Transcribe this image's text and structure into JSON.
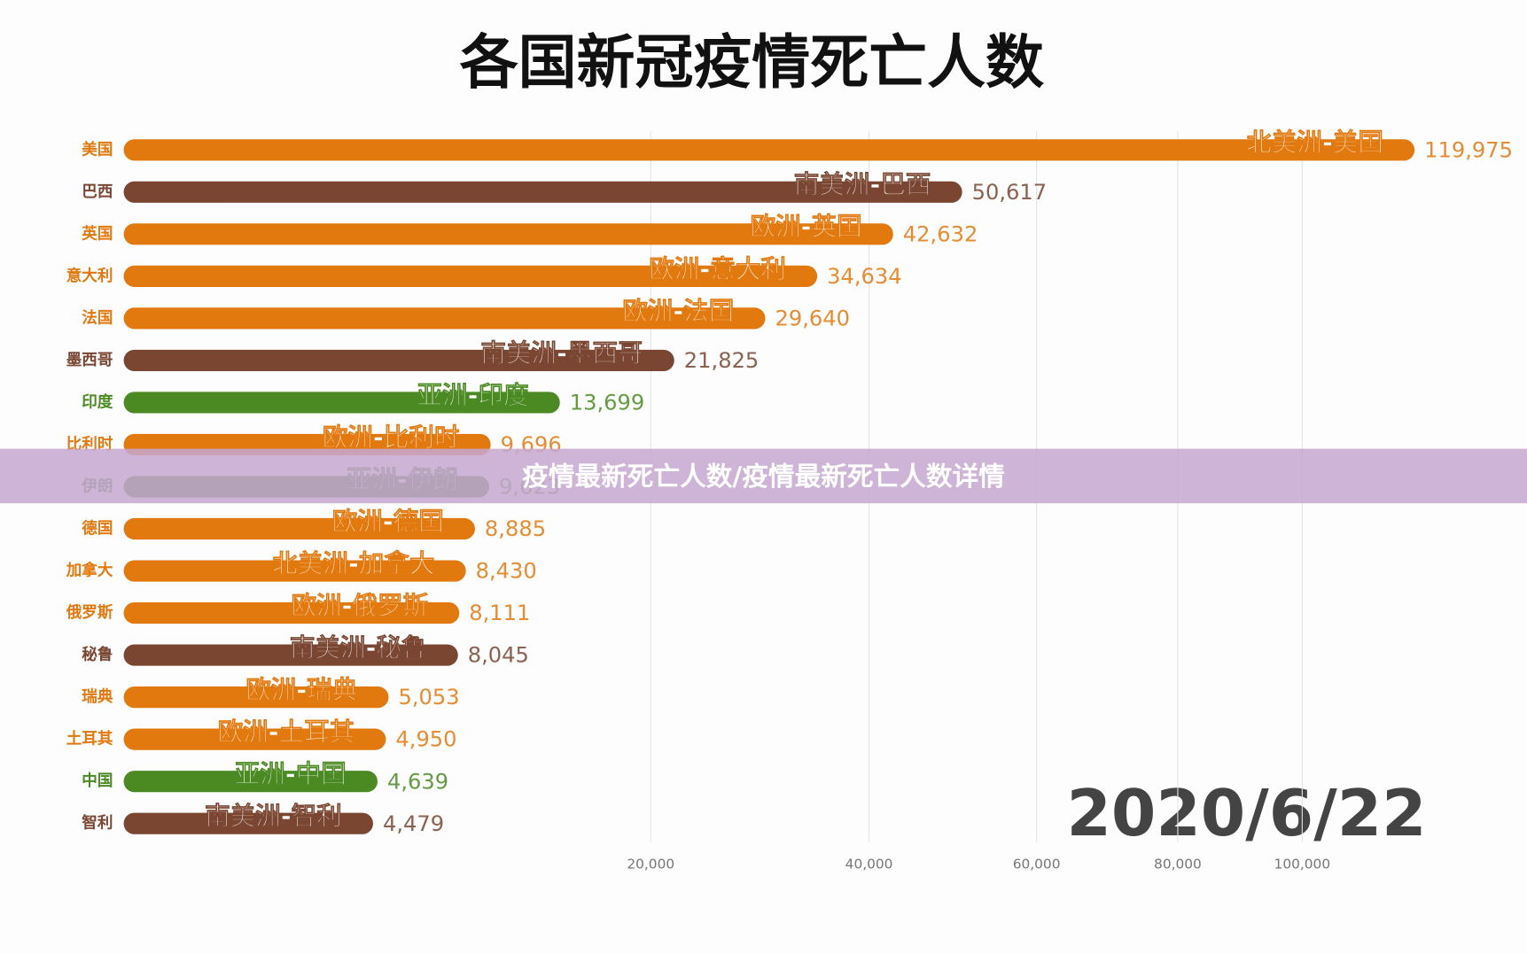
{
  "chart_data": {
    "type": "bar",
    "orientation": "horizontal",
    "title": "各国新冠疫情死亡人数",
    "categories": [
      "美国",
      "巴西",
      "英国",
      "意大利",
      "法国",
      "墨西哥",
      "印度",
      "比利时",
      "伊朗",
      "德国",
      "加拿大",
      "俄罗斯",
      "秘鲁",
      "瑞典",
      "土耳其",
      "中国",
      "智利"
    ],
    "bar_labels": [
      "北美洲-美国",
      "南美洲-巴西",
      "欧洲-英国",
      "欧洲-意大利",
      "欧洲-法国",
      "南美洲-墨西哥",
      "亚洲-印度",
      "欧洲-比利时",
      "亚洲-伊朗",
      "欧洲-德国",
      "北美洲-加拿大",
      "欧洲-俄罗斯",
      "南美洲-秘鲁",
      "欧洲-瑞典",
      "欧洲-土耳其",
      "亚洲-中国",
      "南美洲-智利"
    ],
    "values": [
      119975,
      50617,
      42632,
      34634,
      29640,
      21825,
      13699,
      9696,
      9623,
      8885,
      8430,
      8111,
      8045,
      5053,
      4950,
      4639,
      4479
    ],
    "value_labels": [
      "119,975",
      "50,617",
      "42,632",
      "34,634",
      "29,640",
      "21,825",
      "13,699",
      "9,696",
      "9,623",
      "8,885",
      "8,430",
      "8,111",
      "8,045",
      "5,053",
      "4,950",
      "4,639",
      "4,479"
    ],
    "colors": [
      "#e2790f",
      "#7a4632",
      "#e2790f",
      "#e2790f",
      "#e2790f",
      "#7a4632",
      "#4b8a23",
      "#e2790f",
      "#4b8a23",
      "#e2790f",
      "#e2790f",
      "#e2790f",
      "#7a4632",
      "#e2790f",
      "#e2790f",
      "#4b8a23",
      "#7a4632"
    ],
    "xscale": "sqrt",
    "xlim": [
      0,
      125000
    ],
    "xticks": [
      {
        "value": 20000,
        "label": "20,000"
      },
      {
        "value": 40000,
        "label": "40,000"
      },
      {
        "value": 60000,
        "label": "60,000"
      },
      {
        "value": 80000,
        "label": "80,000"
      },
      {
        "value": 100000,
        "label": "100,000"
      }
    ],
    "grid": true,
    "date": "2020/6/22"
  },
  "banner": "疫情最新死亡人数/疫情最新死亡人数详情"
}
